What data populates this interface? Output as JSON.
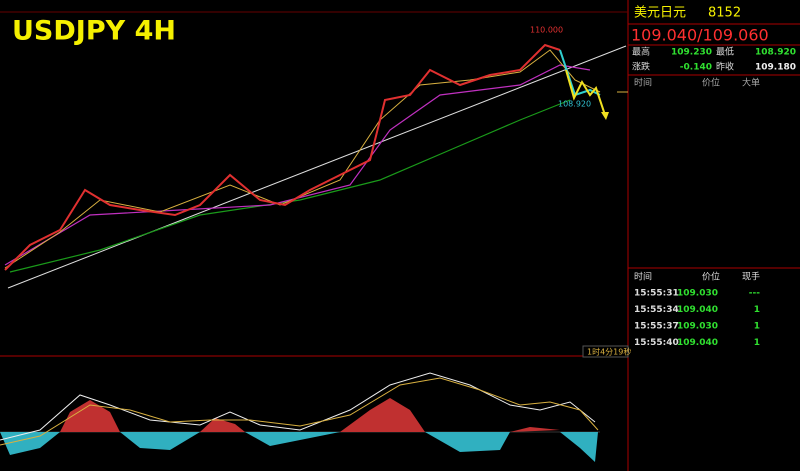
{
  "chart": {
    "title": "USDJPY 4H",
    "high_label": "110.000",
    "low_label": "108.920",
    "countdown": "1时4分19秒"
  },
  "quote": {
    "name": "美元日元",
    "code": "8152",
    "price": "109.040/109.060",
    "stats": [
      {
        "label": "最高",
        "value": "109.230"
      },
      {
        "label": "最低",
        "value": "108.920"
      },
      {
        "label": "涨跌",
        "value": "-0.140"
      },
      {
        "label": "昨收",
        "value": "109.180"
      }
    ]
  },
  "orders": {
    "headers": [
      "时间",
      "价位",
      "大单"
    ]
  },
  "trades": {
    "headers": [
      "时间",
      "价位",
      "现手"
    ],
    "rows": [
      [
        "15:55:31",
        "109.030",
        "---"
      ],
      [
        "15:55:34",
        "109.040",
        "1"
      ],
      [
        "15:55:37",
        "109.030",
        "1"
      ],
      [
        "15:55:40",
        "109.040",
        "1"
      ]
    ]
  }
}
